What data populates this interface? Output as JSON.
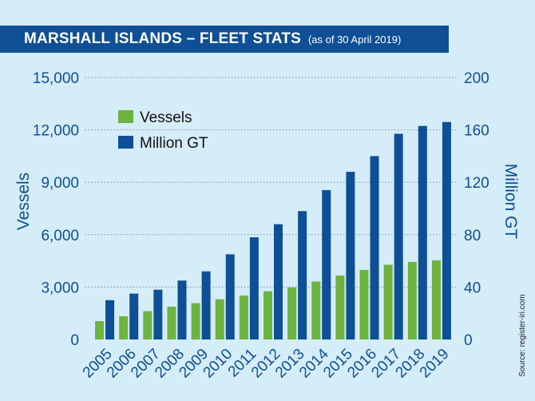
{
  "header": {
    "title": "MARSHALL ISLANDS – FLEET STATS",
    "subtitle": "(as of 30 April 2019)"
  },
  "source": "Source: register-iri.com",
  "colors": {
    "vessels": "#6db33f",
    "gt": "#0e4f95",
    "text": "#0e4f95",
    "background": "#d5ecf9",
    "grid": "#6f8fb0"
  },
  "chart_data": {
    "type": "bar",
    "categories": [
      "2005",
      "2006",
      "2007",
      "2008",
      "2009",
      "2010",
      "2011",
      "2012",
      "2013",
      "2014",
      "2015",
      "2016",
      "2017",
      "2018",
      "2019"
    ],
    "series": [
      {
        "name": "Vessels",
        "axis": "left",
        "values": [
          1050,
          1330,
          1620,
          1880,
          2080,
          2300,
          2520,
          2760,
          2980,
          3320,
          3660,
          3980,
          4280,
          4440,
          4530
        ]
      },
      {
        "name": "Million GT",
        "axis": "right",
        "values": [
          30,
          35,
          38,
          45,
          52,
          65,
          78,
          88,
          98,
          114,
          128,
          140,
          157,
          163,
          166
        ]
      }
    ],
    "yleft": {
      "label": "Vessels",
      "lim": [
        0,
        15000
      ],
      "ticks": [
        "0",
        "3,000",
        "6,000",
        "9,000",
        "12,000",
        "15,000"
      ]
    },
    "yright": {
      "label": "Million GT",
      "lim": [
        0,
        200
      ],
      "ticks": [
        "0",
        "40",
        "80",
        "120",
        "160",
        "200"
      ]
    },
    "grid": "horizontal dotted",
    "legend": "top-left"
  }
}
